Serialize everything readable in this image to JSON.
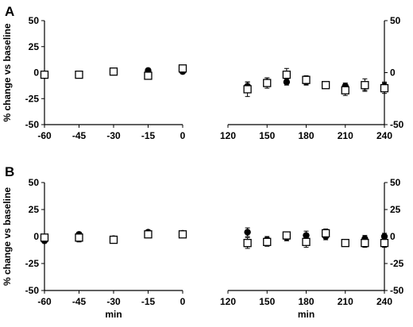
{
  "chart_data": [
    {
      "type": "scatter",
      "panel_label": "A",
      "ylabel": "% change vs baseline",
      "xlabel": "",
      "ylim": [
        -50,
        50
      ],
      "yticks": [
        50,
        25,
        0,
        -25,
        -50
      ],
      "yticks_right": [
        50,
        0,
        -50
      ],
      "left": {
        "xlim": [
          -60,
          0
        ],
        "xticks": [
          -60,
          -45,
          -30,
          -15,
          0
        ],
        "series": [
          {
            "marker": "filled-circle",
            "x": [
              -15,
              0
            ],
            "y": [
              2,
              1
            ],
            "err": [
              2,
              2
            ]
          },
          {
            "marker": "open-square",
            "x": [
              -60,
              -45,
              -30,
              -15,
              0
            ],
            "y": [
              -2,
              -2,
              1,
              -3,
              4
            ],
            "err": [
              1,
              2,
              1,
              2,
              2
            ]
          }
        ]
      },
      "right": {
        "xlim": [
          120,
          240
        ],
        "xticks": [
          120,
          150,
          180,
          210,
          240
        ],
        "series": [
          {
            "marker": "filled-circle",
            "x": [
              135,
              150,
              165,
              180,
              195,
              210,
              225,
              240
            ],
            "y": [
              -13,
              -9,
              -9,
              -9,
              -12,
              -13,
              -13,
              -13
            ],
            "err": [
              4,
              4,
              3,
              3,
              3,
              3,
              4,
              4
            ]
          },
          {
            "marker": "open-square",
            "x": [
              135,
              150,
              165,
              180,
              195,
              210,
              225,
              240
            ],
            "y": [
              -16,
              -10,
              -2,
              -7,
              -12,
              -17,
              -12,
              -15
            ],
            "err": [
              7,
              5,
              6,
              4,
              3,
              5,
              6,
              5
            ]
          }
        ]
      }
    },
    {
      "type": "scatter",
      "panel_label": "B",
      "ylabel": "% change vs baseline",
      "xlabel": "min",
      "ylim": [
        -50,
        50
      ],
      "yticks": [
        50,
        25,
        0,
        -25,
        -50
      ],
      "yticks_right": [
        50,
        25,
        0,
        -25,
        -50
      ],
      "left": {
        "xlim": [
          -60,
          0
        ],
        "xticks": [
          -60,
          -45,
          -30,
          -15,
          0
        ],
        "series": [
          {
            "marker": "filled-circle",
            "x": [
              -60,
              -45,
              -30,
              -15,
              0
            ],
            "y": [
              -4,
              2,
              -2,
              4,
              3
            ],
            "err": [
              2,
              2,
              2,
              2,
              2
            ]
          },
          {
            "marker": "open-square",
            "x": [
              -60,
              -45,
              -30,
              -15,
              0
            ],
            "y": [
              -1,
              -1,
              -3,
              2,
              2
            ],
            "err": [
              2,
              4,
              2,
              2,
              3
            ]
          }
        ]
      },
      "right": {
        "xlim": [
          120,
          240
        ],
        "xticks": [
          120,
          150,
          180,
          210,
          240
        ],
        "series": [
          {
            "marker": "filled-circle",
            "x": [
              135,
              150,
              165,
              180,
              195,
              210,
              225,
              240
            ],
            "y": [
              4,
              -3,
              -1,
              1,
              0,
              -6,
              -2,
              0
            ],
            "err": [
              4,
              3,
              3,
              4,
              3,
              3,
              3,
              3
            ]
          },
          {
            "marker": "open-square",
            "x": [
              135,
              150,
              165,
              180,
              195,
              210,
              225,
              240
            ],
            "y": [
              -6,
              -5,
              1,
              -5,
              3,
              -6,
              -6,
              -6
            ],
            "err": [
              5,
              4,
              3,
              5,
              4,
              3,
              4,
              4
            ]
          }
        ]
      }
    }
  ]
}
